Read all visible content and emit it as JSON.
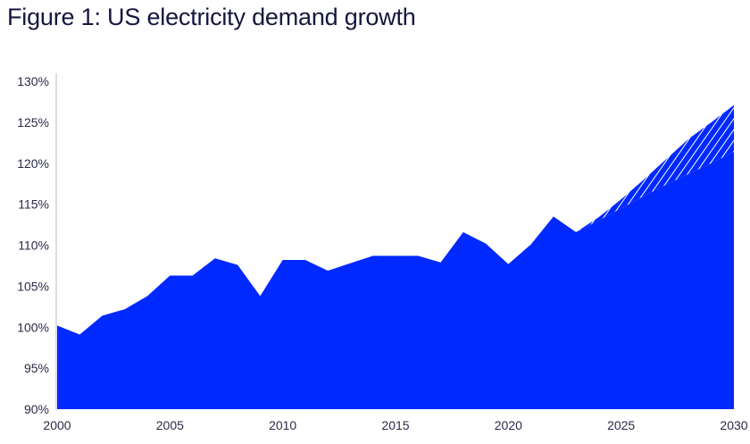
{
  "title": "Figure 1: US electricity demand growth",
  "chart_data": {
    "type": "area",
    "title": "Figure 1: US electricity demand growth",
    "xlabel": "",
    "ylabel": "",
    "xlim": [
      2000,
      2030
    ],
    "ylim": [
      90,
      130
    ],
    "x_ticks": [
      "2000",
      "2005",
      "2010",
      "2015",
      "2020",
      "2025",
      "2030"
    ],
    "y_ticks": [
      "90%",
      "95%",
      "100%",
      "105%",
      "110%",
      "115%",
      "120%",
      "125%",
      "130%"
    ],
    "grid": false,
    "color": "#0029ff",
    "historical": {
      "x": [
        2000,
        2001,
        2002,
        2003,
        2004,
        2005,
        2006,
        2007,
        2008,
        2009,
        2010,
        2011,
        2012,
        2013,
        2014,
        2015,
        2016,
        2017,
        2018,
        2019,
        2020,
        2021,
        2022,
        2023
      ],
      "y": [
        100.2,
        99.1,
        101.4,
        102.2,
        103.8,
        106.3,
        106.3,
        108.4,
        107.6,
        103.8,
        108.2,
        108.2,
        106.9,
        107.8,
        108.7,
        108.7,
        108.7,
        107.9,
        111.6,
        110.2,
        107.7,
        110.1,
        113.5,
        111.6
      ]
    },
    "forecast_low": {
      "x": [
        2023,
        2024,
        2025,
        2026,
        2027,
        2028,
        2029,
        2030
      ],
      "y": [
        111.6,
        113.0,
        114.5,
        116.0,
        117.4,
        118.7,
        120.0,
        121.4
      ]
    },
    "forecast_high": {
      "x": [
        2023,
        2024,
        2025,
        2026,
        2027,
        2028,
        2029,
        2030
      ],
      "y": [
        111.6,
        113.4,
        115.6,
        118.0,
        120.5,
        123.0,
        125.0,
        127.1
      ]
    },
    "forecast_band_style": "hatched"
  }
}
